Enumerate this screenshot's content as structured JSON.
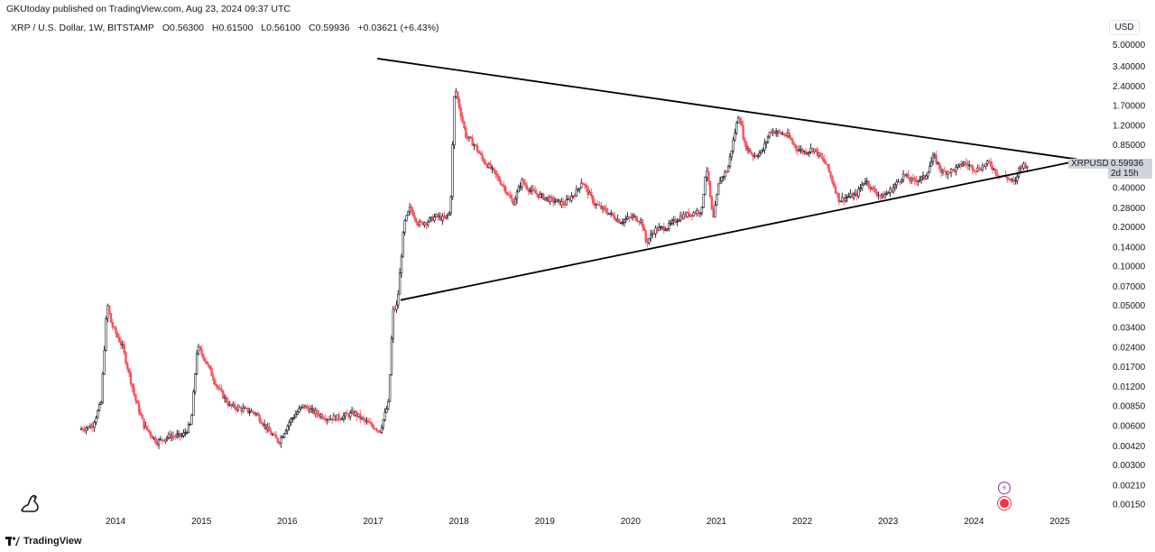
{
  "header": {
    "published": "GKUtoday published on TradingView.com, Aug 23, 2024 09:37 UTC"
  },
  "legend": {
    "symbol": "XRP / U.S. Dollar, 1W, BITSTAMP",
    "open": "O0.56300",
    "high": "H0.61500",
    "low": "L0.56100",
    "close": "C0.59936",
    "change": "+0.03621 (+6.43%)"
  },
  "currency_label": "USD",
  "price_tag": {
    "symbol": "XRPUSD",
    "value": "0.59936",
    "countdown": "2d 15h"
  },
  "footer": {
    "brand": "TradingView"
  },
  "colors": {
    "bull": "#131722",
    "bear": "#f7525f",
    "trendline": "#000000",
    "axis_tag": "#d1d4dc"
  },
  "chart_data": {
    "type": "candlestick",
    "scale": "log",
    "xlim": [
      2013.2,
      2025.5
    ],
    "ylim": [
      0.0013,
      5.8
    ],
    "y_ticks": [
      "5.00000",
      "3.40000",
      "2.40000",
      "1.70000",
      "1.20000",
      "0.85000",
      "0.60000",
      "0.40000",
      "0.28000",
      "0.20000",
      "0.14000",
      "0.10000",
      "0.07000",
      "0.05000",
      "0.03400",
      "0.02400",
      "0.01700",
      "0.01200",
      "0.00850",
      "0.00600",
      "0.00420",
      "0.00300",
      "0.00210",
      "0.00150"
    ],
    "x_ticks": [
      "2014",
      "2015",
      "2016",
      "2017",
      "2018",
      "2019",
      "2020",
      "2021",
      "2022",
      "2023",
      "2024",
      "2025"
    ],
    "price_path": [
      [
        2013.6,
        0.0056
      ],
      [
        2013.75,
        0.006
      ],
      [
        2013.85,
        0.009
      ],
      [
        2013.92,
        0.052
      ],
      [
        2013.97,
        0.036
      ],
      [
        2014.1,
        0.024
      ],
      [
        2014.25,
        0.0095
      ],
      [
        2014.35,
        0.006
      ],
      [
        2014.5,
        0.0045
      ],
      [
        2014.65,
        0.005
      ],
      [
        2014.8,
        0.005
      ],
      [
        2014.9,
        0.0062
      ],
      [
        2014.97,
        0.024
      ],
      [
        2015.05,
        0.02
      ],
      [
        2015.2,
        0.012
      ],
      [
        2015.35,
        0.0085
      ],
      [
        2015.5,
        0.008
      ],
      [
        2015.65,
        0.0075
      ],
      [
        2015.8,
        0.0055
      ],
      [
        2015.92,
        0.0045
      ],
      [
        2016.05,
        0.0065
      ],
      [
        2016.2,
        0.0085
      ],
      [
        2016.35,
        0.0075
      ],
      [
        2016.5,
        0.0068
      ],
      [
        2016.65,
        0.007
      ],
      [
        2016.8,
        0.0075
      ],
      [
        2016.92,
        0.0065
      ],
      [
        2017.1,
        0.0055
      ],
      [
        2017.2,
        0.009
      ],
      [
        2017.25,
        0.045
      ],
      [
        2017.3,
        0.05
      ],
      [
        2017.38,
        0.21
      ],
      [
        2017.45,
        0.28
      ],
      [
        2017.55,
        0.21
      ],
      [
        2017.65,
        0.22
      ],
      [
        2017.75,
        0.24
      ],
      [
        2017.85,
        0.23
      ],
      [
        2017.92,
        0.26
      ],
      [
        2017.97,
        2.4
      ],
      [
        2018.02,
        1.7
      ],
      [
        2018.1,
        1.0
      ],
      [
        2018.2,
        0.85
      ],
      [
        2018.3,
        0.65
      ],
      [
        2018.4,
        0.55
      ],
      [
        2018.55,
        0.4
      ],
      [
        2018.65,
        0.3
      ],
      [
        2018.75,
        0.45
      ],
      [
        2018.85,
        0.38
      ],
      [
        2018.95,
        0.35
      ],
      [
        2019.1,
        0.32
      ],
      [
        2019.25,
        0.3
      ],
      [
        2019.4,
        0.38
      ],
      [
        2019.45,
        0.45
      ],
      [
        2019.6,
        0.3
      ],
      [
        2019.75,
        0.26
      ],
      [
        2019.9,
        0.22
      ],
      [
        2020.05,
        0.24
      ],
      [
        2020.15,
        0.22
      ],
      [
        2020.2,
        0.15
      ],
      [
        2020.3,
        0.19
      ],
      [
        2020.45,
        0.2
      ],
      [
        2020.6,
        0.24
      ],
      [
        2020.7,
        0.25
      ],
      [
        2020.85,
        0.27
      ],
      [
        2020.9,
        0.6
      ],
      [
        2020.98,
        0.22
      ],
      [
        2021.05,
        0.45
      ],
      [
        2021.15,
        0.55
      ],
      [
        2021.28,
        1.5
      ],
      [
        2021.35,
        0.85
      ],
      [
        2021.45,
        0.7
      ],
      [
        2021.55,
        0.75
      ],
      [
        2021.65,
        1.1
      ],
      [
        2021.75,
        1.05
      ],
      [
        2021.85,
        1.0
      ],
      [
        2021.95,
        0.8
      ],
      [
        2022.05,
        0.75
      ],
      [
        2022.15,
        0.8
      ],
      [
        2022.3,
        0.6
      ],
      [
        2022.45,
        0.32
      ],
      [
        2022.55,
        0.34
      ],
      [
        2022.65,
        0.35
      ],
      [
        2022.75,
        0.46
      ],
      [
        2022.85,
        0.38
      ],
      [
        2022.95,
        0.34
      ],
      [
        2023.05,
        0.38
      ],
      [
        2023.2,
        0.5
      ],
      [
        2023.3,
        0.45
      ],
      [
        2023.45,
        0.48
      ],
      [
        2023.55,
        0.7
      ],
      [
        2023.65,
        0.52
      ],
      [
        2023.8,
        0.55
      ],
      [
        2023.9,
        0.62
      ],
      [
        2024.05,
        0.55
      ],
      [
        2024.2,
        0.62
      ],
      [
        2024.3,
        0.5
      ],
      [
        2024.4,
        0.48
      ],
      [
        2024.5,
        0.43
      ],
      [
        2024.55,
        0.58
      ],
      [
        2024.62,
        0.59936
      ]
    ],
    "trendlines": [
      {
        "name": "upper",
        "points": [
          [
            2017.05,
            3.9
          ],
          [
            2025.2,
            0.66
          ]
        ]
      },
      {
        "name": "lower",
        "points": [
          [
            2017.32,
            0.055
          ],
          [
            2025.2,
            0.64
          ]
        ]
      }
    ]
  }
}
